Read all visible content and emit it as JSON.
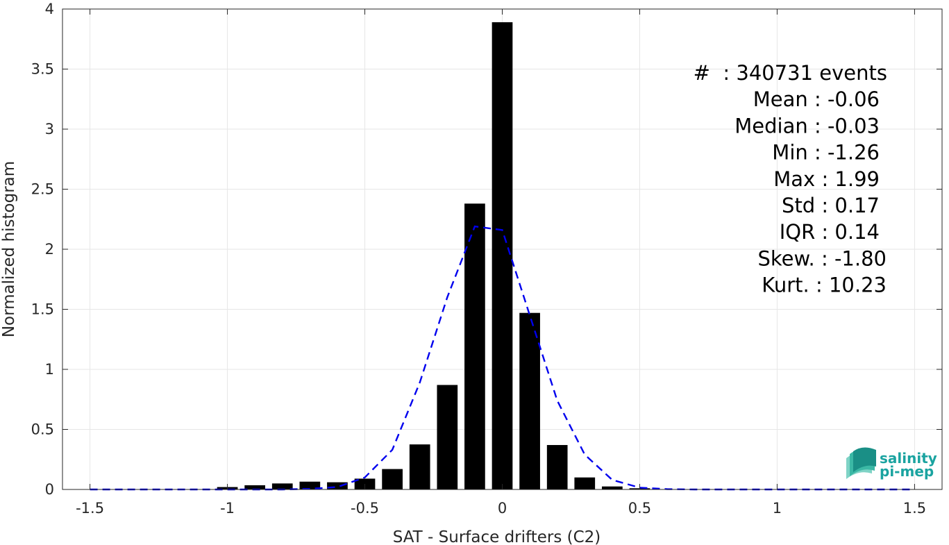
{
  "chart_data": {
    "type": "bar",
    "xlabel": "SAT - Surface drifters (C2)",
    "ylabel": "Normalized histogram",
    "xlim": [
      -1.6,
      1.6
    ],
    "ylim": [
      0,
      4
    ],
    "x_ticks": [
      "-1.5",
      "-1",
      "-0.5",
      "0",
      "0.5",
      "1",
      "1.5"
    ],
    "y_ticks": [
      "0",
      "0.5",
      "1",
      "1.5",
      "2",
      "2.5",
      "3",
      "3.5",
      "4"
    ],
    "grid": true,
    "bar_color": "#000000",
    "bins": {
      "x": [
        -1.5,
        -1.4,
        -1.3,
        -1.2,
        -1.1,
        -1.0,
        -0.9,
        -0.8,
        -0.7,
        -0.6,
        -0.5,
        -0.4,
        -0.3,
        -0.2,
        -0.1,
        0.0,
        0.1,
        0.2,
        0.3,
        0.4,
        0.5,
        0.6,
        0.7,
        0.8,
        0.9,
        1.0,
        1.1,
        1.2,
        1.3,
        1.4,
        1.5
      ],
      "values": [
        0,
        0,
        0,
        0,
        0,
        0.02,
        0.035,
        0.05,
        0.065,
        0.06,
        0.09,
        0.17,
        0.375,
        0.87,
        2.38,
        3.89,
        1.47,
        0.37,
        0.1,
        0.025,
        0.01,
        0.003,
        0.001,
        0,
        0,
        0,
        0,
        0,
        0,
        0,
        0
      ]
    },
    "fit_curve": {
      "style": "dashed",
      "color": "#0000ee",
      "x": [
        -1.5,
        -1.4,
        -1.3,
        -1.2,
        -1.1,
        -1.0,
        -0.9,
        -0.8,
        -0.7,
        -0.6,
        -0.5,
        -0.4,
        -0.3,
        -0.2,
        -0.1,
        0.0,
        0.1,
        0.2,
        0.3,
        0.4,
        0.5,
        0.6,
        0.7,
        0.8,
        0.9,
        1.0,
        1.1,
        1.2,
        1.3,
        1.4,
        1.5
      ],
      "y": [
        0,
        0,
        0,
        0,
        0,
        0,
        0,
        0,
        0.005,
        0.02,
        0.1,
        0.33,
        0.89,
        1.6,
        2.19,
        2.16,
        1.45,
        0.74,
        0.29,
        0.08,
        0.015,
        0.003,
        0,
        0,
        0,
        0,
        0,
        0,
        0,
        0,
        0
      ]
    },
    "annotations": [
      "#  : 340731 events",
      "Mean : -0.06",
      "Median : -0.03",
      "Min : -1.26",
      "Max : 1.99",
      "Std : 0.17",
      "IQR : 0.14",
      "Skew. : -1.80",
      "Kurt. : 10.23"
    ]
  },
  "logo": {
    "line1": "salinity",
    "line2": "pi-mep",
    "color": "#1aa3a0"
  }
}
